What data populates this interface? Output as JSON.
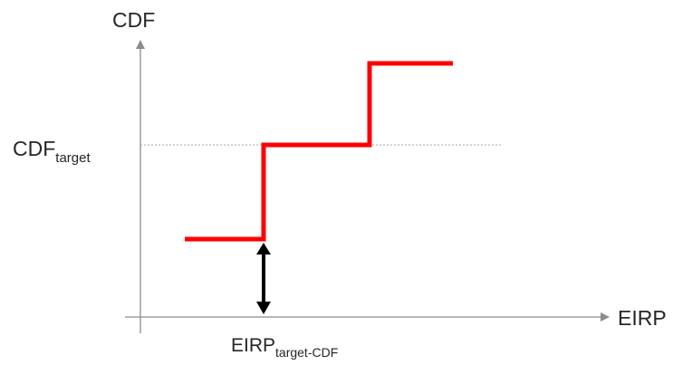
{
  "diagram": {
    "y_axis_label": "CDF",
    "x_axis_label": "EIRP",
    "target_level_label": {
      "main": "CDF",
      "subscript": "target"
    },
    "marker_label": {
      "main": "EIRP",
      "subscript": "target-CDF"
    },
    "colors": {
      "axis": "#8c8c8c",
      "step_curve": "#ff0000",
      "dashed_reference": "#a6a6a6",
      "double_arrow": "#000000",
      "text": "#262626"
    }
  }
}
